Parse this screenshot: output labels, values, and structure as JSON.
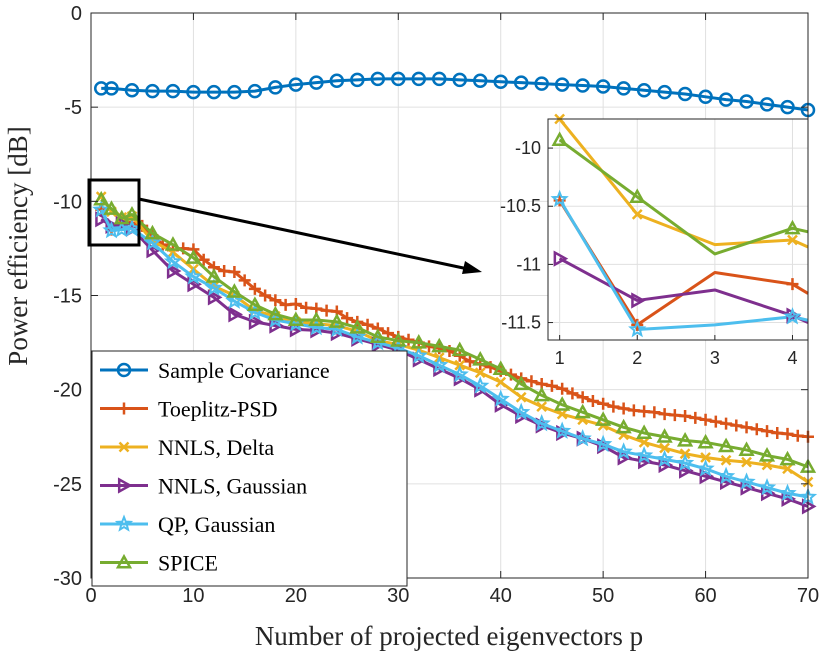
{
  "chart_data": {
    "type": "line",
    "xlabel": "Number of projected eigenvectors p",
    "ylabel": "Power efficiency [dB]",
    "xlim": [
      0,
      70
    ],
    "ylim": [
      -30,
      0
    ],
    "xticks": [
      0,
      10,
      20,
      30,
      40,
      50,
      60,
      70
    ],
    "yticks": [
      0,
      -5,
      -10,
      -15,
      -20,
      -25,
      -30
    ],
    "x_tick_labels": [
      "0",
      "10",
      "20",
      "30",
      "40",
      "50",
      "60",
      "70"
    ],
    "y_tick_labels": [
      "0",
      "-5",
      "-10",
      "-15",
      "-20",
      "-25",
      "-30"
    ],
    "grid": true,
    "legend_position": "bottom-left",
    "series": [
      {
        "name": "Sample Covariance",
        "color": "#0072BD",
        "marker": "circle",
        "x": [
          1,
          2,
          4,
          6,
          8,
          10,
          12,
          14,
          16,
          18,
          20,
          22,
          24,
          26,
          28,
          30,
          32,
          34,
          36,
          38,
          40,
          42,
          44,
          46,
          48,
          50,
          52,
          54,
          56,
          58,
          60,
          62,
          64,
          66,
          68,
          70
        ],
        "y": [
          -4.0,
          -4.0,
          -4.1,
          -4.15,
          -4.15,
          -4.2,
          -4.2,
          -4.2,
          -4.15,
          -3.95,
          -3.8,
          -3.7,
          -3.6,
          -3.55,
          -3.5,
          -3.5,
          -3.5,
          -3.5,
          -3.55,
          -3.6,
          -3.65,
          -3.7,
          -3.75,
          -3.8,
          -3.85,
          -3.9,
          -4.0,
          -4.1,
          -4.2,
          -4.3,
          -4.45,
          -4.6,
          -4.7,
          -4.85,
          -5.0,
          -5.15
        ]
      },
      {
        "name": "Toeplitz-PSD",
        "color": "#D95319",
        "marker": "plus",
        "x": [
          1,
          2,
          3,
          4,
          5,
          6,
          7,
          8,
          9,
          10,
          11,
          12,
          13,
          14,
          15,
          16,
          17,
          18,
          19,
          20,
          21,
          22,
          23,
          24,
          25,
          26,
          27,
          28,
          29,
          30,
          31,
          32,
          33,
          34,
          35,
          36,
          37,
          38,
          39,
          40,
          41,
          42,
          43,
          44,
          45,
          46,
          47,
          48,
          49,
          50,
          51,
          52,
          53,
          54,
          55,
          56,
          57,
          58,
          59,
          60,
          61,
          62,
          63,
          64,
          65,
          66,
          67,
          68,
          69,
          70
        ],
        "y": [
          -10.45,
          -11.5,
          -11.05,
          -11.15,
          -11.3,
          -11.8,
          -12.3,
          -12.6,
          -12.5,
          -12.55,
          -13.1,
          -13.5,
          -13.7,
          -13.75,
          -14.2,
          -14.65,
          -15.0,
          -15.25,
          -15.5,
          -15.45,
          -15.65,
          -15.7,
          -15.8,
          -15.85,
          -16.2,
          -16.4,
          -16.55,
          -16.75,
          -17.0,
          -17.2,
          -17.35,
          -17.5,
          -17.7,
          -17.8,
          -17.95,
          -18.2,
          -18.5,
          -18.65,
          -18.8,
          -19.0,
          -19.2,
          -19.4,
          -19.55,
          -19.7,
          -19.8,
          -19.95,
          -20.2,
          -20.4,
          -20.6,
          -20.75,
          -20.9,
          -21.0,
          -21.1,
          -21.15,
          -21.2,
          -21.3,
          -21.35,
          -21.4,
          -21.5,
          -21.6,
          -21.7,
          -21.8,
          -21.9,
          -22.0,
          -22.1,
          -22.2,
          -22.3,
          -22.35,
          -22.45,
          -22.5
        ]
      },
      {
        "name": "NNLS, Delta",
        "color": "#EDB120",
        "marker": "x",
        "x": [
          1,
          2,
          3,
          4,
          6,
          8,
          10,
          12,
          14,
          16,
          18,
          20,
          22,
          24,
          26,
          28,
          30,
          32,
          34,
          36,
          38,
          40,
          42,
          44,
          46,
          48,
          50,
          52,
          54,
          56,
          58,
          60,
          62,
          64,
          66,
          68,
          70
        ],
        "y": [
          -9.75,
          -10.55,
          -10.85,
          -10.8,
          -12.1,
          -12.7,
          -13.6,
          -14.5,
          -15.0,
          -15.8,
          -16.1,
          -16.4,
          -16.5,
          -16.6,
          -16.9,
          -17.4,
          -17.6,
          -17.9,
          -18.3,
          -18.7,
          -19.1,
          -19.6,
          -20.4,
          -20.9,
          -21.3,
          -21.6,
          -21.9,
          -22.4,
          -22.8,
          -23.1,
          -23.4,
          -23.6,
          -23.75,
          -23.85,
          -24.0,
          -24.2,
          -24.9
        ]
      },
      {
        "name": "NNLS, Gaussian",
        "color": "#7E2F8E",
        "marker": "triangle-right",
        "x": [
          1,
          2,
          3,
          4,
          6,
          8,
          10,
          12,
          14,
          16,
          18,
          20,
          22,
          24,
          26,
          28,
          30,
          32,
          34,
          36,
          38,
          40,
          42,
          44,
          46,
          48,
          50,
          52,
          54,
          56,
          58,
          60,
          62,
          64,
          66,
          68,
          70
        ],
        "y": [
          -10.95,
          -11.3,
          -11.2,
          -11.45,
          -12.6,
          -13.7,
          -14.4,
          -15.1,
          -16.0,
          -16.4,
          -16.6,
          -16.8,
          -16.85,
          -17.0,
          -17.3,
          -17.6,
          -17.9,
          -18.4,
          -18.9,
          -19.4,
          -20.0,
          -20.8,
          -21.4,
          -21.9,
          -22.3,
          -22.6,
          -23.0,
          -23.6,
          -23.8,
          -24.0,
          -24.3,
          -24.6,
          -24.9,
          -25.2,
          -25.5,
          -25.8,
          -26.2
        ]
      },
      {
        "name": "QP, Gaussian",
        "color": "#4DBEEE",
        "marker": "star",
        "x": [
          1,
          2,
          3,
          4,
          6,
          8,
          10,
          12,
          14,
          16,
          18,
          20,
          22,
          24,
          26,
          28,
          30,
          32,
          34,
          36,
          38,
          40,
          42,
          44,
          46,
          48,
          50,
          52,
          54,
          56,
          58,
          60,
          62,
          64,
          66,
          68,
          70
        ],
        "y": [
          -10.45,
          -11.55,
          -11.5,
          -11.45,
          -12.2,
          -13.2,
          -14.0,
          -14.6,
          -15.3,
          -15.9,
          -16.3,
          -16.5,
          -16.7,
          -16.8,
          -17.2,
          -17.5,
          -17.8,
          -18.2,
          -18.7,
          -19.2,
          -19.8,
          -20.5,
          -21.2,
          -21.8,
          -22.2,
          -22.6,
          -22.9,
          -23.3,
          -23.5,
          -23.7,
          -23.9,
          -24.2,
          -24.6,
          -24.9,
          -25.2,
          -25.5,
          -25.7
        ]
      },
      {
        "name": "SPICE",
        "color": "#77AC30",
        "marker": "triangle-up",
        "x": [
          1,
          2,
          3,
          4,
          6,
          8,
          10,
          12,
          14,
          16,
          18,
          20,
          22,
          24,
          26,
          28,
          30,
          32,
          34,
          36,
          38,
          40,
          42,
          44,
          46,
          48,
          50,
          52,
          54,
          56,
          58,
          60,
          62,
          64,
          66,
          68,
          70
        ],
        "y": [
          -9.9,
          -10.4,
          -10.9,
          -10.7,
          -11.7,
          -12.3,
          -13.0,
          -14.0,
          -14.8,
          -15.5,
          -16.0,
          -16.3,
          -16.3,
          -16.4,
          -16.7,
          -17.2,
          -17.4,
          -17.5,
          -17.7,
          -17.9,
          -18.4,
          -18.9,
          -19.7,
          -20.3,
          -20.8,
          -21.2,
          -21.6,
          -22.0,
          -22.3,
          -22.5,
          -22.7,
          -22.8,
          -23.0,
          -23.2,
          -23.5,
          -23.7,
          -24.1
        ]
      }
    ],
    "inset": {
      "xlim": [
        0.85,
        4.2
      ],
      "ylim": [
        -11.65,
        -9.75
      ],
      "xticks": [
        1,
        2,
        3,
        4
      ],
      "yticks": [
        -10,
        -10.5,
        -11,
        -11.5
      ],
      "x_tick_labels": [
        "1",
        "2",
        "3",
        "4"
      ],
      "y_tick_labels": [
        "-10",
        "-10.5",
        "-11",
        "-11.5"
      ],
      "series": [
        {
          "name": "Toeplitz-PSD",
          "color": "#D95319",
          "marker": "none",
          "x": [
            1,
            2,
            3,
            4,
            4.2
          ],
          "y": [
            -10.45,
            -11.52,
            -11.07,
            -11.17,
            -11.25
          ]
        },
        {
          "name": "NNLS, Delta",
          "color": "#EDB120",
          "marker": "none",
          "x": [
            1,
            2,
            3,
            4,
            4.2
          ],
          "y": [
            -9.75,
            -10.57,
            -10.83,
            -10.79,
            -10.85
          ]
        },
        {
          "name": "NNLS, Gaussian",
          "color": "#7E2F8E",
          "marker": "none",
          "x": [
            1,
            2,
            3,
            4,
            4.2
          ],
          "y": [
            -10.95,
            -11.31,
            -11.22,
            -11.44,
            -11.5
          ]
        },
        {
          "name": "QP, Gaussian",
          "color": "#4DBEEE",
          "marker": "none",
          "x": [
            1,
            2,
            3,
            4,
            4.2
          ],
          "y": [
            -10.44,
            -11.56,
            -11.52,
            -11.45,
            -11.48
          ]
        },
        {
          "name": "SPICE",
          "color": "#77AC30",
          "marker": "none",
          "x": [
            1,
            2,
            3,
            4,
            4.2
          ],
          "y": [
            -9.93,
            -10.42,
            -10.91,
            -10.69,
            -10.72
          ]
        }
      ]
    }
  }
}
